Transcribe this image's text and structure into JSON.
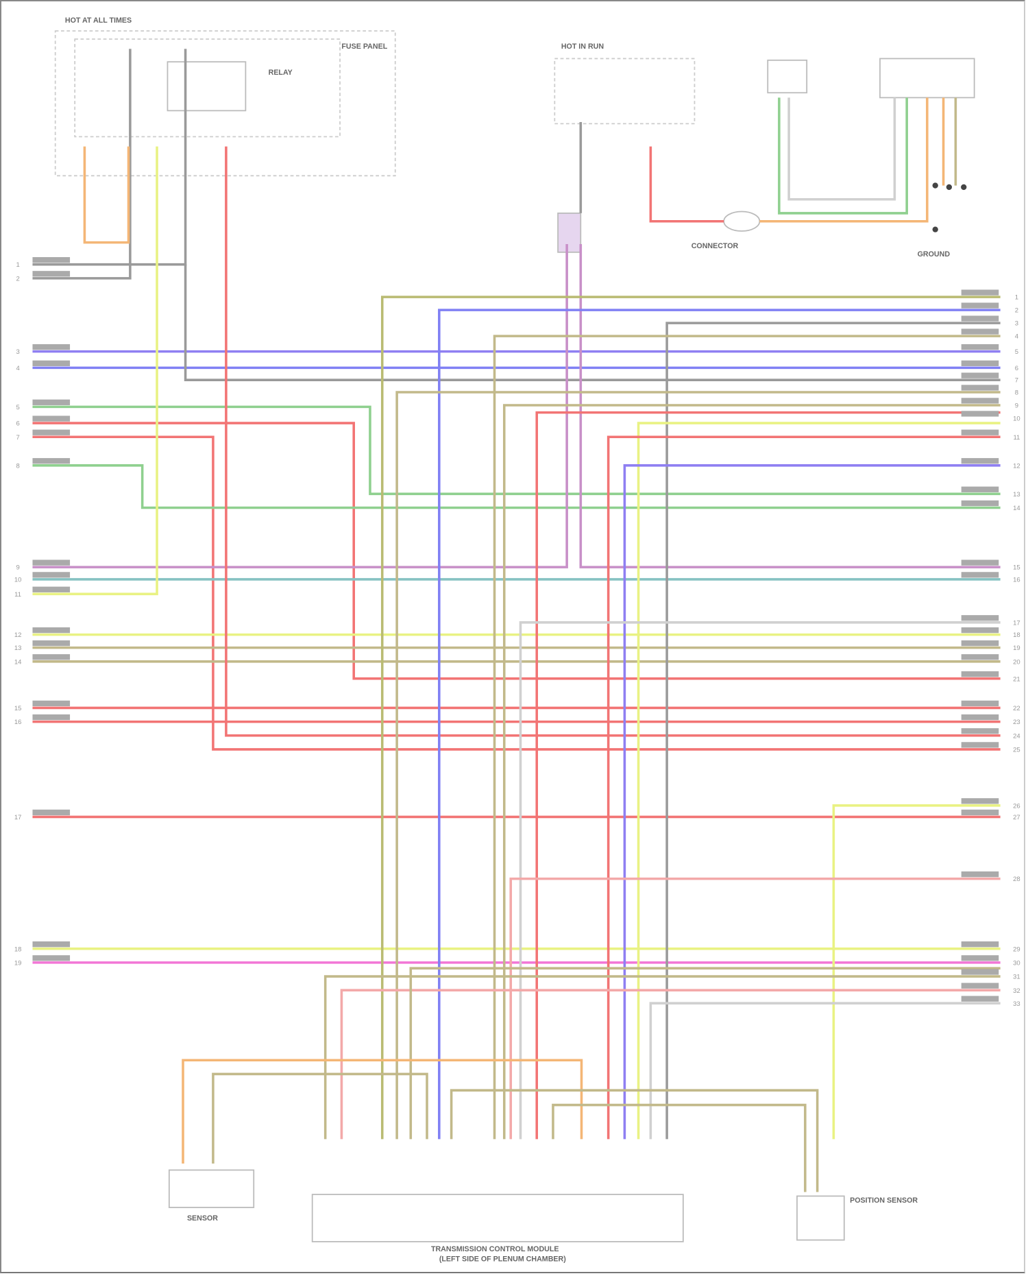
{
  "colors": {
    "violet": "#8f7ff2",
    "blue": "#8080f4",
    "grey": "#9a9a9a",
    "tan": "#c2b98a",
    "olive": "#b9bb72",
    "green": "#8fd08f",
    "red": "#f27474",
    "pink": "#f3a9a9",
    "yellow": "#e9f283",
    "orange": "#f4b676",
    "magenta": "#f276d6",
    "teal": "#86c2c2",
    "mauve": "#c88fc8",
    "lightgrey": "#d0d0d0"
  },
  "components": {
    "fuse_box": "FUSE PANEL",
    "relay": "RELAY",
    "transmission_module": "TRANSMISSION CONTROL MODULE",
    "transmission_module_loc": "(LEFT SIDE OF PLENUM CHAMBER)",
    "left_sensor": "SENSOR",
    "right_sensor": "POSITION SENSOR",
    "connector": "CONNECTOR",
    "ground": "GROUND",
    "hot_left": "HOT AT ALL TIMES",
    "hot_right": "HOT IN RUN"
  },
  "pins_left": [
    "1",
    "2",
    "3",
    "4",
    "5",
    "6",
    "7",
    "8",
    "9",
    "10",
    "11",
    "12",
    "13",
    "14",
    "15",
    "16",
    "17",
    "18",
    "19"
  ],
  "pins_right": [
    "1",
    "2",
    "3",
    "4",
    "5",
    "6",
    "7",
    "8",
    "9",
    "10",
    "11",
    "12",
    "13",
    "14",
    "15",
    "16",
    "17",
    "18",
    "19",
    "20",
    "21",
    "22",
    "23",
    "24",
    "25",
    "26",
    "27",
    "28",
    "29",
    "30",
    "31",
    "32",
    "33"
  ]
}
